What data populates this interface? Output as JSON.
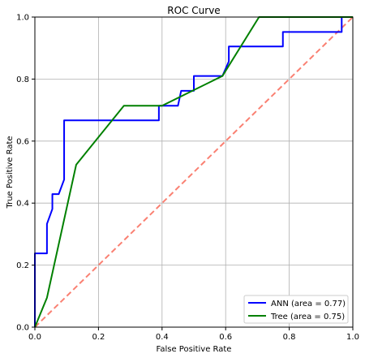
{
  "chart_data": {
    "type": "line",
    "title": "ROC Curve",
    "xlabel": "False Positive Rate",
    "ylabel": "True Positive Rate",
    "xlim": [
      0,
      1
    ],
    "ylim": [
      0,
      1
    ],
    "xticks": [
      "0.0",
      "0.2",
      "0.4",
      "0.6",
      "0.8",
      "1.0"
    ],
    "yticks": [
      "0.0",
      "0.2",
      "0.4",
      "0.6",
      "0.8",
      "1.0"
    ],
    "grid": true,
    "legend_position": "bottom-right",
    "series": [
      {
        "name": "ANN (area = 0.77)",
        "color": "#0000ff",
        "points": [
          [
            0.0,
            0.0
          ],
          [
            0.0,
            0.238
          ],
          [
            0.038,
            0.238
          ],
          [
            0.038,
            0.333
          ],
          [
            0.055,
            0.381
          ],
          [
            0.055,
            0.429
          ],
          [
            0.075,
            0.429
          ],
          [
            0.092,
            0.476
          ],
          [
            0.092,
            0.667
          ],
          [
            0.39,
            0.667
          ],
          [
            0.39,
            0.714
          ],
          [
            0.45,
            0.714
          ],
          [
            0.46,
            0.762
          ],
          [
            0.5,
            0.762
          ],
          [
            0.5,
            0.81
          ],
          [
            0.59,
            0.81
          ],
          [
            0.61,
            0.857
          ],
          [
            0.61,
            0.905
          ],
          [
            0.78,
            0.905
          ],
          [
            0.78,
            0.952
          ],
          [
            0.965,
            0.952
          ],
          [
            0.965,
            1.0
          ],
          [
            1.0,
            1.0
          ]
        ]
      },
      {
        "name": "Tree (area = 0.75)",
        "color": "#008000",
        "points": [
          [
            0.0,
            0.0
          ],
          [
            0.038,
            0.095
          ],
          [
            0.13,
            0.524
          ],
          [
            0.28,
            0.714
          ],
          [
            0.4,
            0.714
          ],
          [
            0.59,
            0.81
          ],
          [
            0.705,
            1.0
          ],
          [
            1.0,
            1.0
          ]
        ]
      },
      {
        "color": "#fa8072",
        "dashed": true,
        "points": [
          [
            0.0,
            0.0
          ],
          [
            1.0,
            1.0
          ]
        ]
      }
    ]
  }
}
